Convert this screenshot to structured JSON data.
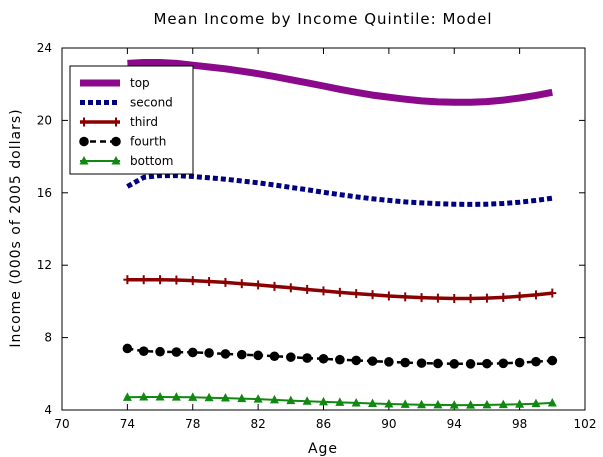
{
  "chart_data": {
    "type": "line",
    "title": "Mean Income by Income Quintile:  Model",
    "xlabel": "Age",
    "ylabel": "Income (000s of 2005 dollars)",
    "xlim": [
      70,
      102
    ],
    "ylim": [
      4,
      24
    ],
    "xticks": [
      70,
      74,
      78,
      82,
      86,
      90,
      94,
      98,
      102
    ],
    "yticks": [
      4,
      8,
      12,
      16,
      20,
      24
    ],
    "grid": false,
    "legend_position": "top-left",
    "x": [
      74,
      75,
      76,
      77,
      78,
      79,
      80,
      81,
      82,
      83,
      84,
      85,
      86,
      87,
      88,
      89,
      90,
      91,
      92,
      93,
      94,
      95,
      96,
      97,
      98,
      99,
      100
    ],
    "series": [
      {
        "name": "top",
        "color": "#8B0A8B",
        "style": "solid-thick",
        "values": [
          23.15,
          23.2,
          23.2,
          23.15,
          23.05,
          22.95,
          22.85,
          22.72,
          22.58,
          22.42,
          22.25,
          22.08,
          21.9,
          21.72,
          21.55,
          21.4,
          21.28,
          21.17,
          21.08,
          21.02,
          21.0,
          21.0,
          21.04,
          21.12,
          21.24,
          21.38,
          21.55
        ]
      },
      {
        "name": "second",
        "color": "#000080",
        "style": "dotted",
        "values": [
          16.35,
          16.85,
          16.95,
          16.95,
          16.9,
          16.83,
          16.75,
          16.65,
          16.55,
          16.43,
          16.3,
          16.17,
          16.03,
          15.9,
          15.78,
          15.67,
          15.58,
          15.5,
          15.44,
          15.4,
          15.37,
          15.36,
          15.37,
          15.41,
          15.48,
          15.58,
          15.7
        ]
      },
      {
        "name": "third",
        "color": "#8B0000",
        "style": "solid-plus",
        "values": [
          11.2,
          11.2,
          11.2,
          11.18,
          11.15,
          11.1,
          11.05,
          10.98,
          10.91,
          10.83,
          10.75,
          10.66,
          10.58,
          10.5,
          10.43,
          10.37,
          10.3,
          10.25,
          10.21,
          10.18,
          10.16,
          10.16,
          10.18,
          10.22,
          10.28,
          10.36,
          10.46
        ]
      },
      {
        "name": "fourth",
        "color": "#000000",
        "style": "dashed-circle",
        "values": [
          7.4,
          7.25,
          7.22,
          7.2,
          7.18,
          7.15,
          7.1,
          7.06,
          7.02,
          6.97,
          6.92,
          6.87,
          6.83,
          6.78,
          6.74,
          6.7,
          6.66,
          6.62,
          6.59,
          6.57,
          6.55,
          6.55,
          6.56,
          6.58,
          6.62,
          6.67,
          6.73
        ]
      },
      {
        "name": "bottom",
        "color": "#118811",
        "style": "solid-triangle",
        "values": [
          4.7,
          4.72,
          4.72,
          4.71,
          4.7,
          4.68,
          4.66,
          4.63,
          4.6,
          4.56,
          4.52,
          4.48,
          4.45,
          4.42,
          4.39,
          4.36,
          4.33,
          4.31,
          4.29,
          4.28,
          4.27,
          4.27,
          4.28,
          4.3,
          4.32,
          4.35,
          4.39
        ]
      }
    ]
  }
}
